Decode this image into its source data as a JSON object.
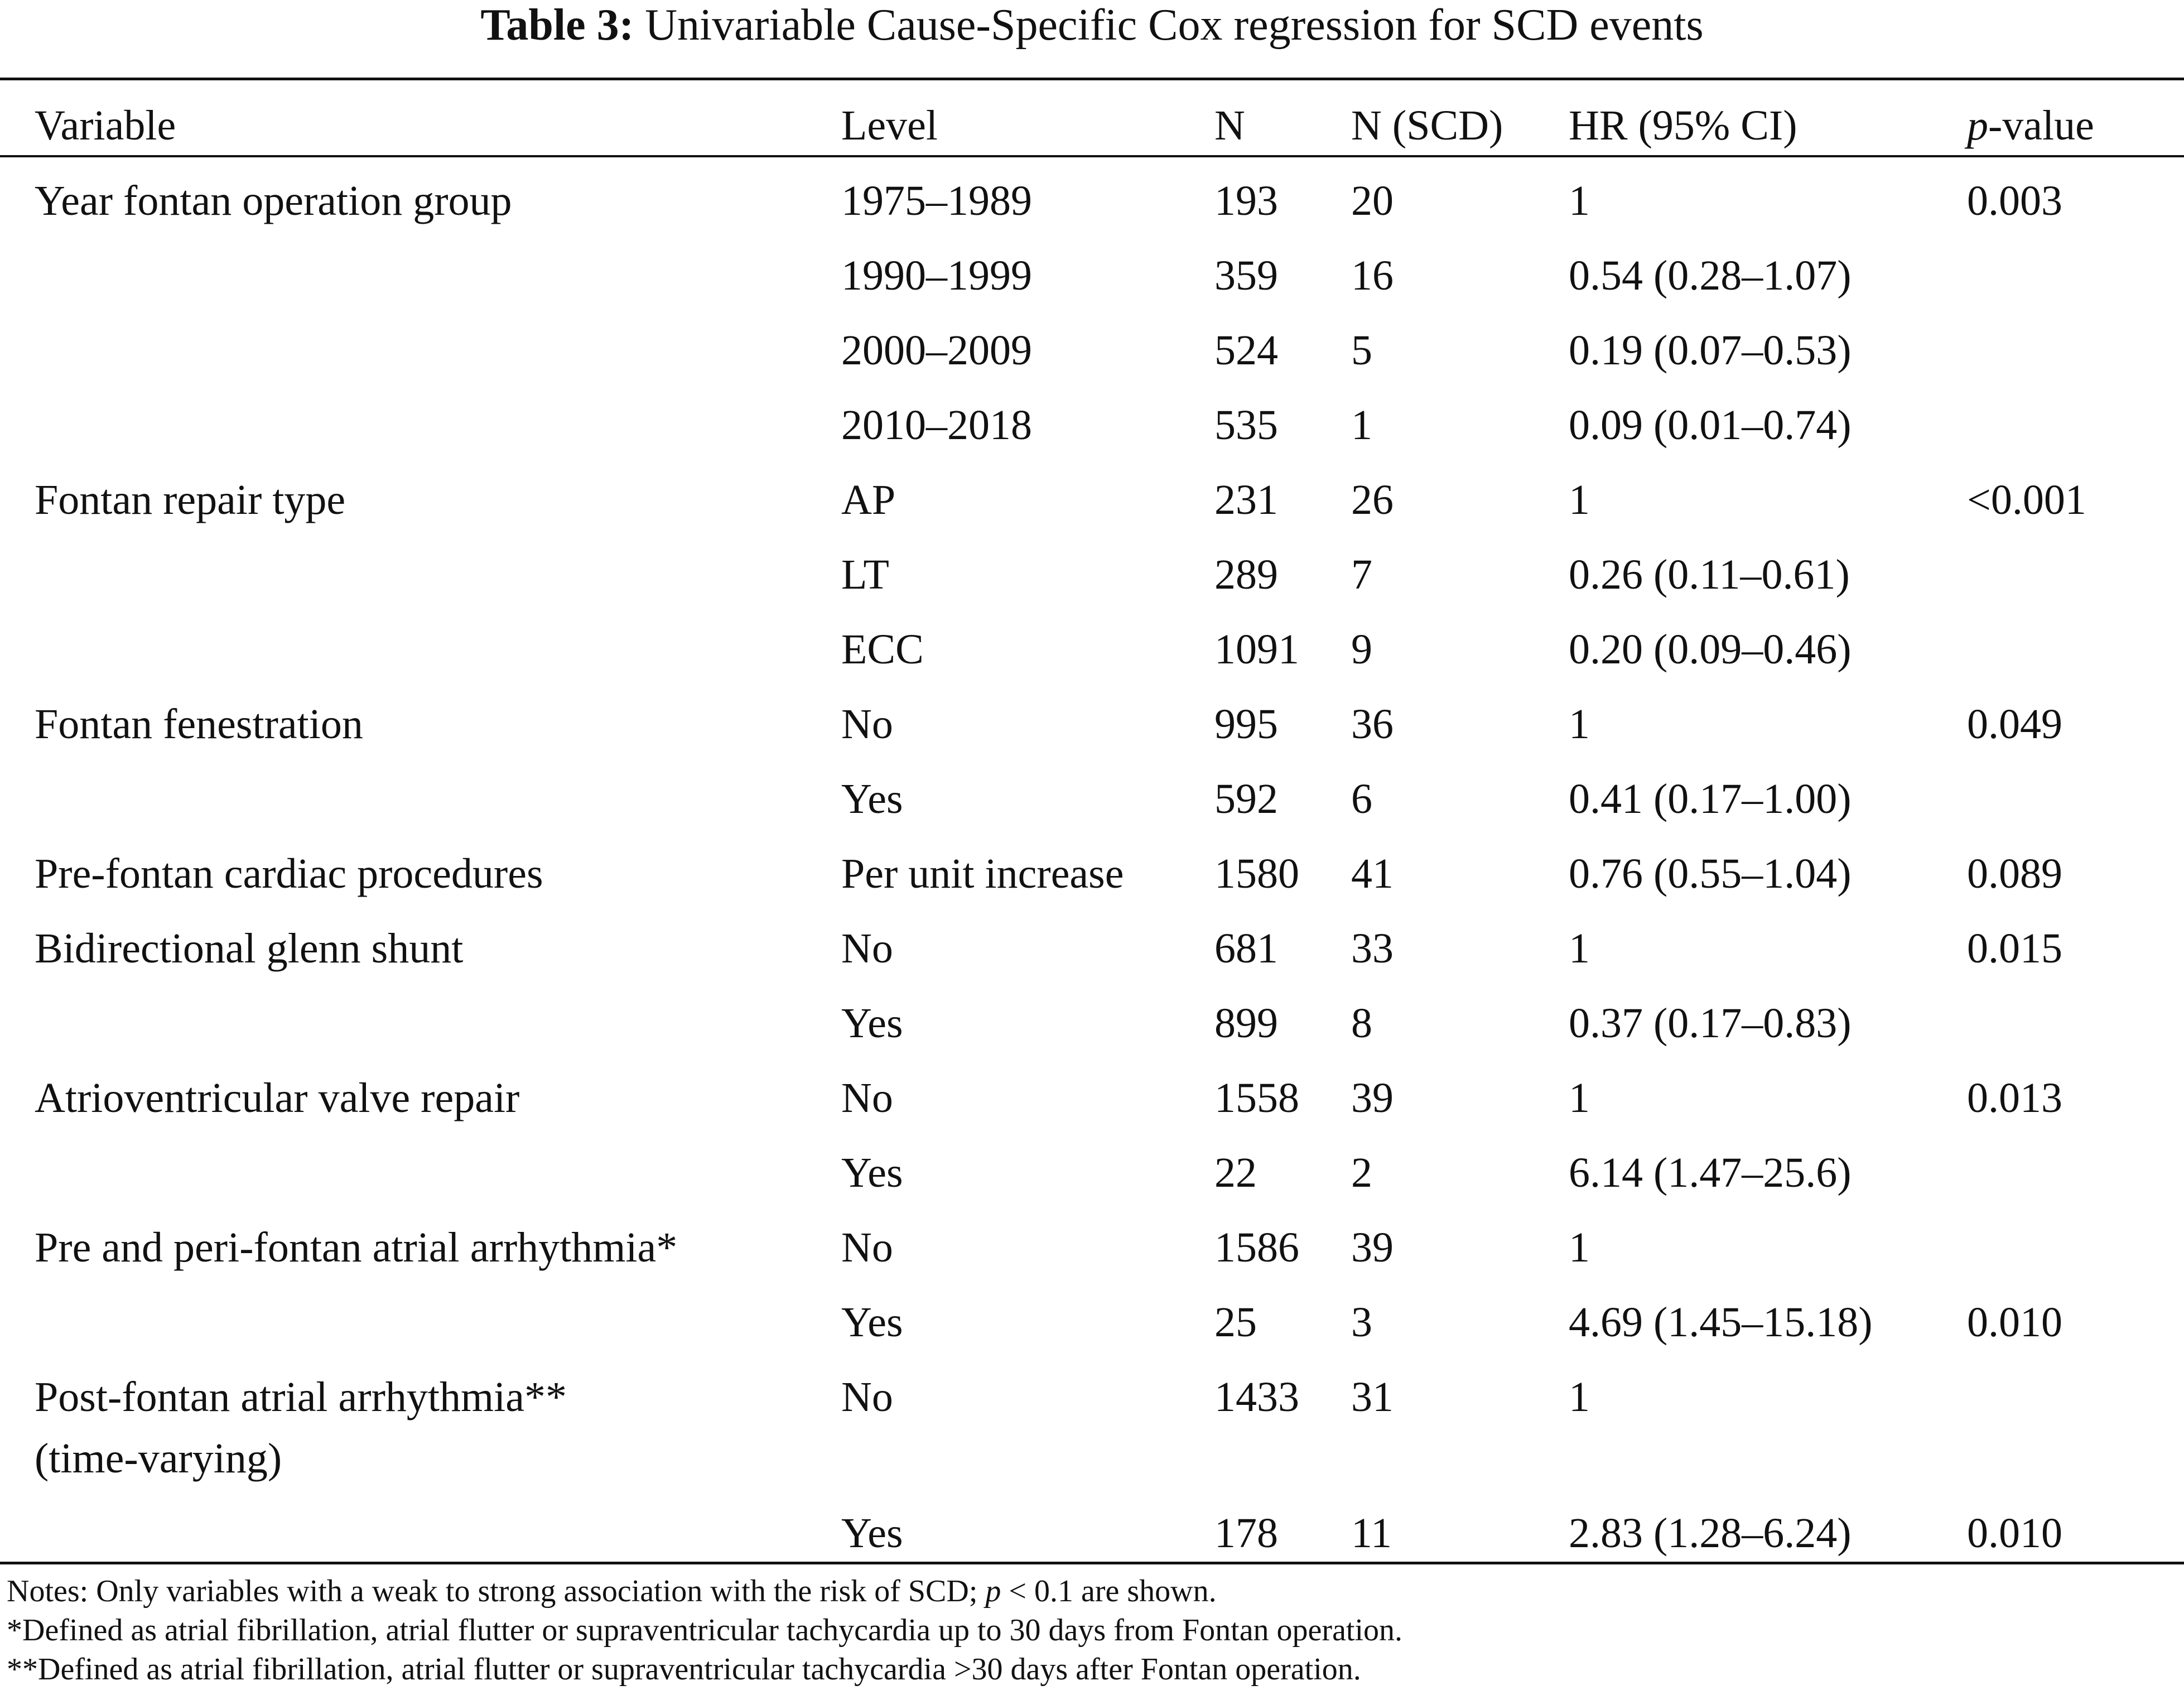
{
  "title": {
    "label": "Table 3:",
    "text": "Univariable Cause-Specific Cox regression for SCD events"
  },
  "table": {
    "header": {
      "variable": "Variable",
      "level": "Level",
      "n": "N",
      "n_scd": "N (SCD)",
      "hr": "HR (95% CI)",
      "p_value": {
        "italic": "p",
        "rest": "-value"
      }
    },
    "rows": [
      {
        "variable": [
          "Year fontan operation group"
        ],
        "level": "1975–1989",
        "n": "193",
        "n_scd": "20",
        "hr": "1",
        "p": "0.003"
      },
      {
        "variable": null,
        "level": "1990–1999",
        "n": "359",
        "n_scd": "16",
        "hr": "0.54 (0.28–1.07)",
        "p": null
      },
      {
        "variable": null,
        "level": "2000–2009",
        "n": "524",
        "n_scd": "5",
        "hr": "0.19 (0.07–0.53)",
        "p": null
      },
      {
        "variable": null,
        "level": "2010–2018",
        "n": "535",
        "n_scd": "1",
        "hr": "0.09 (0.01–0.74)",
        "p": null
      },
      {
        "variable": [
          "Fontan repair type"
        ],
        "level": "AP",
        "n": "231",
        "n_scd": "26",
        "hr": "1",
        "p": "<0.001"
      },
      {
        "variable": null,
        "level": "LT",
        "n": "289",
        "n_scd": "7",
        "hr": "0.26 (0.11–0.61)",
        "p": null
      },
      {
        "variable": null,
        "level": "ECC",
        "n": "1091",
        "n_scd": "9",
        "hr": "0.20 (0.09–0.46)",
        "p": null
      },
      {
        "variable": [
          "Fontan fenestration"
        ],
        "level": "No",
        "n": "995",
        "n_scd": "36",
        "hr": "1",
        "p": "0.049"
      },
      {
        "variable": null,
        "level": "Yes",
        "n": "592",
        "n_scd": "6",
        "hr": "0.41 (0.17–1.00)",
        "p": null
      },
      {
        "variable": [
          "Pre-fontan cardiac procedures"
        ],
        "level": "Per unit increase",
        "n": "1580",
        "n_scd": "41",
        "hr": "0.76 (0.55–1.04)",
        "p": "0.089"
      },
      {
        "variable": [
          "Bidirectional glenn shunt"
        ],
        "level": "No",
        "n": "681",
        "n_scd": "33",
        "hr": "1",
        "p": "0.015"
      },
      {
        "variable": null,
        "level": "Yes",
        "n": "899",
        "n_scd": "8",
        "hr": "0.37 (0.17–0.83)",
        "p": null
      },
      {
        "variable": [
          "Atrioventricular valve repair"
        ],
        "level": "No",
        "n": "1558",
        "n_scd": "39",
        "hr": "1",
        "p": "0.013"
      },
      {
        "variable": null,
        "level": "Yes",
        "n": "22",
        "n_scd": "2",
        "hr": "6.14 (1.47–25.6)",
        "p": null
      },
      {
        "variable": [
          "Pre and peri-fontan atrial arrhythmia*"
        ],
        "level": "No",
        "n": "1586",
        "n_scd": "39",
        "hr": "1",
        "p": null
      },
      {
        "variable": null,
        "level": "Yes",
        "n": "25",
        "n_scd": "3",
        "hr": "4.69 (1.45–15.18)",
        "p": "0.010"
      },
      {
        "variable": [
          "Post-fontan atrial arrhythmia**",
          "(time-varying)"
        ],
        "level": "No",
        "n": "1433",
        "n_scd": "31",
        "hr": "1",
        "p": null
      },
      {
        "variable": null,
        "level": "Yes",
        "n": "178",
        "n_scd": "11",
        "hr": "2.83 (1.28–6.24)",
        "p": "0.010"
      }
    ]
  },
  "notes": [
    [
      "Notes: Only variables with a weak to strong association with the risk of SCD; ",
      "p",
      " < 0.1 are shown."
    ],
    [
      "*Defined as atrial fibrillation, atrial flutter or supraventricular tachycardia up to 30 days from Fontan operation."
    ],
    [
      "**Defined as atrial fibrillation, atrial flutter or supraventricular tachycardia >30 days after Fontan operation."
    ]
  ]
}
